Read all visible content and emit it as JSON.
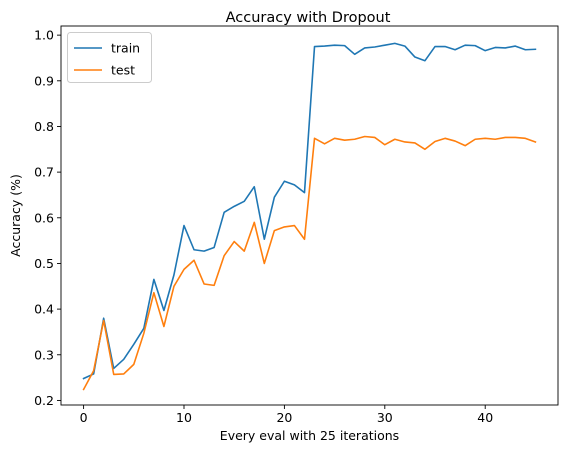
{
  "chart_data": {
    "type": "line",
    "title": "Accuracy with Dropout",
    "xlabel": "Every eval with 25 iterations",
    "ylabel": "Accuracy (%)",
    "xlim": [
      -2.25,
      47.25
    ],
    "ylim": [
      0.19,
      1.02
    ],
    "x_ticks": [
      0,
      10,
      20,
      30,
      40
    ],
    "y_ticks": [
      0.2,
      0.3,
      0.4,
      0.5,
      0.6,
      0.7,
      0.8,
      0.9,
      1.0
    ],
    "y_tick_labels": [
      "0.2",
      "0.3",
      "0.4",
      "0.5",
      "0.6",
      "0.7",
      "0.8",
      "0.9",
      "1.0"
    ],
    "grid": false,
    "legend_position": "top-left",
    "x": [
      0,
      1,
      2,
      3,
      4,
      5,
      6,
      7,
      8,
      9,
      10,
      11,
      12,
      13,
      14,
      15,
      16,
      17,
      18,
      19,
      20,
      21,
      22,
      23,
      24,
      25,
      26,
      27,
      28,
      29,
      30,
      31,
      32,
      33,
      34,
      35,
      36,
      37,
      38,
      39,
      40,
      41,
      42,
      43,
      44,
      45
    ],
    "series": [
      {
        "name": "train",
        "color": "#1f77b4",
        "values": [
          0.248,
          0.258,
          0.38,
          0.27,
          0.29,
          0.323,
          0.358,
          0.465,
          0.397,
          0.475,
          0.583,
          0.53,
          0.527,
          0.535,
          0.612,
          0.625,
          0.636,
          0.668,
          0.553,
          0.645,
          0.68,
          0.672,
          0.655,
          0.975,
          0.976,
          0.978,
          0.977,
          0.958,
          0.972,
          0.974,
          0.978,
          0.982,
          0.976,
          0.952,
          0.944,
          0.975,
          0.975,
          0.968,
          0.978,
          0.977,
          0.966,
          0.973,
          0.972,
          0.976,
          0.968,
          0.969
        ]
      },
      {
        "name": "test",
        "color": "#ff7f0e",
        "values": [
          0.224,
          0.265,
          0.375,
          0.257,
          0.258,
          0.279,
          0.347,
          0.436,
          0.362,
          0.45,
          0.487,
          0.507,
          0.455,
          0.452,
          0.517,
          0.548,
          0.527,
          0.59,
          0.5,
          0.572,
          0.58,
          0.583,
          0.553,
          0.774,
          0.762,
          0.774,
          0.77,
          0.772,
          0.778,
          0.776,
          0.76,
          0.772,
          0.766,
          0.764,
          0.75,
          0.767,
          0.774,
          0.768,
          0.758,
          0.772,
          0.774,
          0.772,
          0.776,
          0.776,
          0.774,
          0.766
        ]
      }
    ]
  }
}
